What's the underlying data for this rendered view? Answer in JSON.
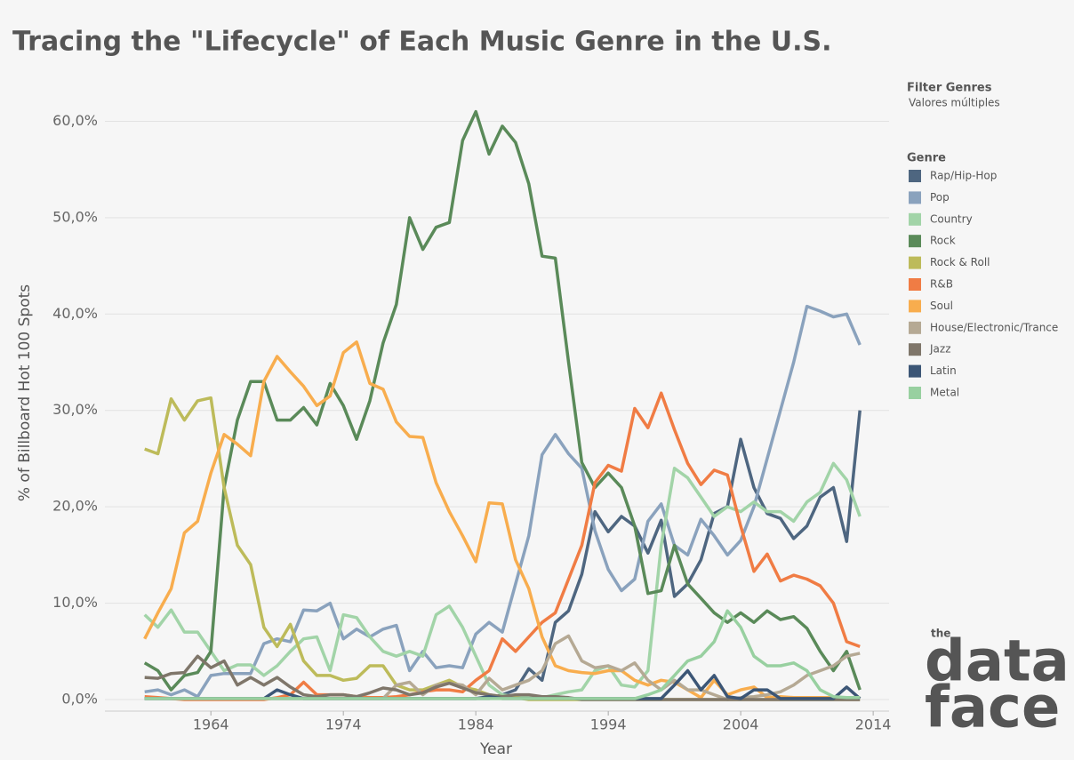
{
  "chart_data": {
    "type": "line",
    "title": "Tracing the \"Lifecycle\" of Each Music Genre in the U.S.",
    "x_label": "Year",
    "y_label": "% of Billboard Hot 100 Spots",
    "filter_title": "Filter Genres",
    "filter_value": "Valores múltiples",
    "legend_title": "Genre",
    "logo": {
      "small": "the",
      "top": "data",
      "bottom": "face"
    },
    "grid": true,
    "xlim": [
      1956,
      2015.2
    ],
    "ylim": [
      -1.2,
      62.9
    ],
    "xticks": [
      1964,
      1974,
      1984,
      1994,
      2004,
      2014
    ],
    "yticks": [
      {
        "value": 0,
        "label": "0,0%"
      },
      {
        "value": 10,
        "label": "10,0%"
      },
      {
        "value": 20,
        "label": "20,0%"
      },
      {
        "value": 30,
        "label": "30,0%"
      },
      {
        "value": 40,
        "label": "40,0%"
      },
      {
        "value": 50,
        "label": "50,0%"
      },
      {
        "value": 60,
        "label": "60,0%"
      }
    ],
    "x": [
      1959,
      1960,
      1961,
      1962,
      1963,
      1964,
      1965,
      1966,
      1967,
      1968,
      1969,
      1970,
      1971,
      1972,
      1973,
      1974,
      1975,
      1976,
      1977,
      1978,
      1979,
      1980,
      1981,
      1982,
      1983,
      1984,
      1985,
      1986,
      1987,
      1988,
      1989,
      1990,
      1991,
      1992,
      1993,
      1994,
      1995,
      1996,
      1997,
      1998,
      1999,
      2000,
      2001,
      2002,
      2003,
      2004,
      2005,
      2006,
      2007,
      2008,
      2009,
      2010,
      2011,
      2012,
      2013
    ],
    "series": [
      {
        "name": "Rap/Hip-Hop",
        "color": "#4e6680",
        "values": [
          0.1,
          0.1,
          0.1,
          0.1,
          0.1,
          0.1,
          0.1,
          0.1,
          0.1,
          0.1,
          0.1,
          0.1,
          0.1,
          0.1,
          0.1,
          0.1,
          0.1,
          0.1,
          0.1,
          0.1,
          0.1,
          0.1,
          0.1,
          0.1,
          0.1,
          0.1,
          0.1,
          0.5,
          1,
          3.2,
          2,
          8,
          9.2,
          13,
          19.5,
          17.4,
          19,
          18,
          15.2,
          18.6,
          10.7,
          12,
          14.5,
          19.3,
          20,
          27,
          22,
          19.3,
          18.8,
          16.7,
          18,
          21,
          22,
          16.4,
          30
        ]
      },
      {
        "name": "Pop",
        "color": "#8aa2bd",
        "values": [
          0.8,
          1,
          0.5,
          1,
          0.3,
          2.5,
          2.7,
          2.7,
          2.7,
          5.8,
          6.3,
          6,
          9.3,
          9.2,
          10,
          6.3,
          7.3,
          6.5,
          7.3,
          7.7,
          3,
          5,
          3.3,
          3.5,
          3.3,
          6.8,
          8,
          7,
          12,
          17,
          25.4,
          27.5,
          25.5,
          24,
          17.5,
          13.5,
          11.3,
          12.5,
          18.5,
          20.3,
          16,
          15,
          18.7,
          17,
          15,
          16.5,
          20,
          25,
          30,
          35,
          40.8,
          40.3,
          39.7,
          40,
          36.8
        ]
      },
      {
        "name": "Country",
        "color": "#a2d4a8",
        "values": [
          8.8,
          7.5,
          9.3,
          7,
          7,
          5,
          3,
          3.6,
          3.6,
          2.5,
          3.5,
          5,
          6.3,
          6.5,
          3,
          8.8,
          8.5,
          6.5,
          5,
          4.5,
          5,
          4.5,
          8.8,
          9.7,
          7.5,
          4.5,
          1.5,
          0.5,
          0.3,
          0.2,
          0.2,
          0.5,
          0.8,
          1,
          3,
          3.5,
          1.5,
          1.3,
          3,
          16,
          24,
          23,
          21,
          19,
          20,
          19.5,
          20.5,
          19.5,
          19.5,
          18.5,
          20.5,
          21.5,
          24.5,
          22.8,
          19
        ]
      },
      {
        "name": "Rock",
        "color": "#5a8a59",
        "values": [
          3.8,
          3,
          1,
          2.5,
          2.8,
          5,
          22,
          29,
          33,
          33,
          29,
          29,
          30.3,
          28.5,
          32.8,
          30.5,
          27,
          31,
          37,
          41,
          50,
          46.7,
          49,
          49.5,
          58,
          61,
          56.6,
          59.5,
          57.8,
          53.5,
          46,
          45.8,
          35,
          24.6,
          22,
          23.5,
          22,
          18,
          11,
          11.3,
          16,
          12,
          10.5,
          9,
          8,
          9,
          8,
          9.2,
          8.3,
          8.6,
          7.4,
          5,
          3,
          5,
          1
        ]
      },
      {
        "name": "Rock & Roll",
        "color": "#bdbb5a",
        "values": [
          26,
          25.5,
          31.2,
          29,
          31,
          31.3,
          22,
          16,
          14,
          7.5,
          5.5,
          7.8,
          4,
          2.5,
          2.5,
          2,
          2.2,
          3.5,
          3.5,
          1.5,
          1,
          1,
          1.5,
          2,
          1.3,
          1,
          0.5,
          0.3,
          0.2,
          0,
          0,
          0,
          0,
          0,
          0,
          0,
          0,
          0,
          0,
          0,
          0,
          0,
          0,
          0,
          0,
          0,
          0,
          0,
          0,
          0,
          0,
          0,
          0,
          0,
          0
        ]
      },
      {
        "name": "R&B",
        "color": "#f07c44",
        "values": [
          0.3,
          0.2,
          0.1,
          0,
          0,
          0,
          0,
          0,
          0,
          0,
          0.2,
          0.5,
          1.8,
          0.5,
          0.5,
          0.5,
          0.3,
          0.2,
          0.2,
          0.3,
          0.5,
          0.8,
          1,
          1,
          0.8,
          2,
          3,
          6.3,
          5,
          6.5,
          8,
          9,
          12.5,
          16,
          22.5,
          24.3,
          23.7,
          30.2,
          28.2,
          31.8,
          28,
          24.5,
          22.3,
          23.8,
          23.3,
          18,
          13.3,
          15.1,
          12.3,
          12.9,
          12.5,
          11.8,
          10,
          6,
          5.5
        ]
      },
      {
        "name": "Soul",
        "color": "#f8ad4e",
        "values": [
          6.3,
          9,
          11.5,
          17.3,
          18.5,
          23.5,
          27.5,
          26.5,
          25.3,
          33,
          35.6,
          34,
          32.5,
          30.5,
          31.5,
          36,
          37.1,
          32.8,
          32.2,
          28.8,
          27.3,
          27.2,
          22.5,
          19.5,
          17,
          14.3,
          20.4,
          20.3,
          14.5,
          11.5,
          6.5,
          3.5,
          3,
          2.8,
          2.7,
          3,
          3,
          2,
          1.5,
          2,
          1.8,
          1,
          0.2,
          2,
          0.5,
          1,
          1.3,
          0.2,
          0.3,
          0.2,
          0.2,
          0.2,
          0.2,
          0.2,
          0.2
        ]
      },
      {
        "name": "House/Electronic/Trance",
        "color": "#b5a994",
        "values": [
          0.1,
          0.1,
          0.1,
          0.1,
          0.1,
          0.1,
          0.1,
          0.1,
          0.1,
          0.1,
          0.1,
          0.1,
          0.1,
          0.1,
          0.1,
          0.1,
          0.1,
          0.1,
          0.1,
          1.5,
          1.8,
          0.5,
          1.5,
          1.7,
          1.5,
          0.5,
          2.2,
          1,
          1.5,
          2,
          3,
          5.8,
          6.6,
          4,
          3.3,
          3.5,
          3,
          3.8,
          2,
          1,
          2,
          1,
          1,
          0.5,
          0,
          0.2,
          0.3,
          0.5,
          0.8,
          1.5,
          2.5,
          3,
          3.5,
          4.5,
          4.8
        ]
      },
      {
        "name": "Jazz",
        "color": "#7f766a",
        "values": [
          2.3,
          2.2,
          2.7,
          2.8,
          4.5,
          3.3,
          4,
          1.5,
          2.3,
          1.5,
          2.3,
          1.3,
          0.5,
          0.3,
          0.5,
          0.5,
          0.3,
          0.7,
          1.2,
          1,
          0.5,
          0.7,
          1.3,
          1.7,
          1.2,
          0.7,
          0.5,
          0.3,
          0.5,
          0.5,
          0.3,
          0.3,
          0.2,
          0,
          0,
          0,
          0,
          0,
          0,
          0,
          0,
          0,
          0,
          0,
          0,
          0,
          0,
          0,
          0,
          0,
          0,
          0,
          0,
          0,
          0
        ]
      },
      {
        "name": "Latin",
        "color": "#3c5676",
        "values": [
          0.1,
          0.1,
          0.1,
          0.1,
          0.1,
          0.1,
          0.1,
          0.1,
          0.1,
          0.1,
          1,
          0.5,
          0.1,
          0.1,
          0.1,
          0.1,
          0.1,
          0.1,
          0.1,
          0.1,
          0.1,
          0.1,
          0.1,
          0.1,
          0.1,
          0.1,
          0.3,
          0.1,
          0.1,
          0.1,
          0.1,
          0.1,
          0.1,
          0.1,
          0.1,
          0.1,
          0.1,
          0.1,
          0.1,
          0.1,
          1.5,
          3,
          1,
          2.5,
          0.3,
          0.1,
          1,
          1,
          0.1,
          0.1,
          0.1,
          0.1,
          0.1,
          1.3,
          0.1
        ]
      },
      {
        "name": "Metal",
        "color": "#98d0a0",
        "values": [
          0.1,
          0.1,
          0.1,
          0.1,
          0.1,
          0.1,
          0.1,
          0.1,
          0.1,
          0.1,
          0.1,
          0.1,
          0.1,
          0.1,
          0.1,
          0.1,
          0.1,
          0.1,
          0.1,
          0.1,
          0.1,
          0.1,
          0.1,
          0.1,
          0.1,
          0.1,
          0.1,
          0.1,
          0.1,
          0.1,
          0.1,
          0.1,
          0.1,
          0.1,
          0.1,
          0.1,
          0.1,
          0.1,
          0.5,
          1,
          2.5,
          4,
          4.5,
          6,
          9.2,
          7.5,
          4.5,
          3.5,
          3.5,
          3.8,
          3,
          1,
          0.3,
          0.2,
          0.2
        ]
      }
    ]
  }
}
